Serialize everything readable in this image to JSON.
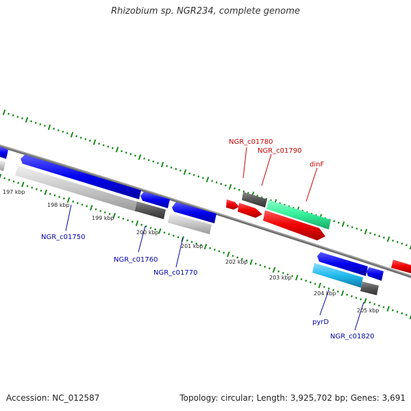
{
  "title": "Rhizobium sp. NGR234, complete genome",
  "footer": {
    "accession": "Accession: NC_012587",
    "summary": "Topology: circular; Length: 3,925,702 bp; Genes: 3,691"
  },
  "colors": {
    "backbone": "#808080",
    "tick": "#1a8a1a",
    "forward_label": "#cc0000",
    "reverse_label": "#0000aa",
    "gene_red": "#ee0000",
    "gene_blue": "#0000ee",
    "gene_gray": "#c4c4c4",
    "gene_darkgray": "#555555",
    "gene_green": "#33ee99",
    "gene_cyan": "#22bbee"
  },
  "scale": {
    "unit": "kbp",
    "labels": [
      "197 kbp",
      "198 kbp",
      "199 kbp",
      "200 kbp",
      "201 kbp",
      "202 kbp",
      "203 kbp",
      "204 kbp",
      "205 kbp"
    ]
  },
  "gene_labels": {
    "forward": [
      "NGR_c01780",
      "NGR_c01790",
      "dinF"
    ],
    "reverse": [
      "NGR_c01750",
      "NGR_c01760",
      "NGR_c01770",
      "pyrD",
      "NGR_c01820"
    ]
  }
}
